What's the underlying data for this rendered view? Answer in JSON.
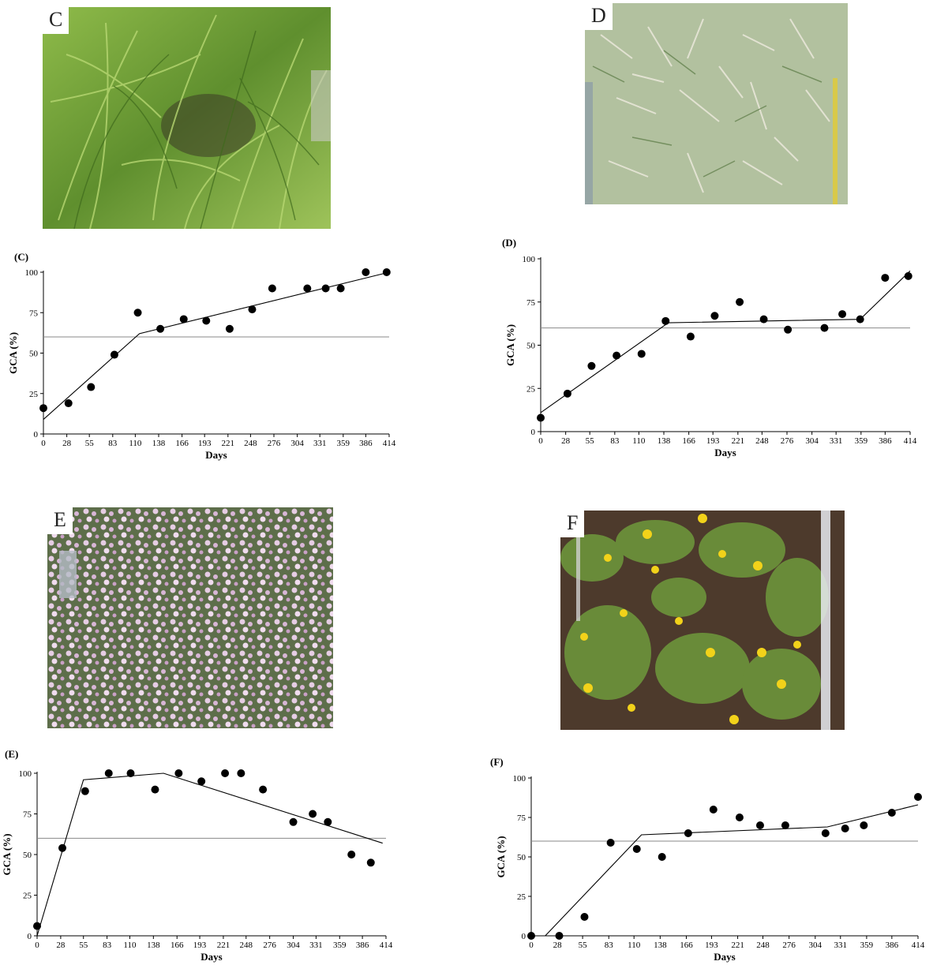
{
  "panels": [
    {
      "letter": "C",
      "photo_label": "C",
      "photo_theme": "green-grass-tussocks"
    },
    {
      "letter": "D",
      "photo_label": "D",
      "photo_theme": "pale-grass-with-measuring-tape"
    },
    {
      "letter": "E",
      "photo_label": "E",
      "photo_theme": "pink-flowering-groundcover"
    },
    {
      "letter": "F",
      "photo_label": "F",
      "photo_theme": "yellow-flowers-on-soil"
    }
  ],
  "colors": {
    "marker": "#000000",
    "trend_line": "#000000",
    "threshold_line": "#888888",
    "grass_green": "#6f9e3a",
    "pale_grass": "#c9d3b8",
    "pink_flower": "#d8b6d6",
    "yellow_flower": "#f2d21a",
    "soil": "#4d3a2c"
  },
  "chart_data": [
    {
      "type": "scatter",
      "title": "(C)",
      "xlabel": "Days",
      "ylabel": "GCA (%)",
      "xlim": [
        0,
        414
      ],
      "ylim": [
        0,
        100
      ],
      "xticks": [
        0,
        28,
        55,
        83,
        110,
        138,
        166,
        193,
        221,
        248,
        276,
        304,
        331,
        359,
        386,
        414
      ],
      "yticks": [
        0,
        25,
        50,
        75,
        100
      ],
      "threshold": 60,
      "points": [
        {
          "x": 0,
          "y": 16
        },
        {
          "x": 30,
          "y": 19
        },
        {
          "x": 57,
          "y": 29
        },
        {
          "x": 85,
          "y": 49
        },
        {
          "x": 113,
          "y": 75
        },
        {
          "x": 140,
          "y": 65
        },
        {
          "x": 168,
          "y": 71
        },
        {
          "x": 195,
          "y": 70
        },
        {
          "x": 223,
          "y": 65
        },
        {
          "x": 250,
          "y": 77
        },
        {
          "x": 274,
          "y": 90
        },
        {
          "x": 316,
          "y": 90
        },
        {
          "x": 338,
          "y": 90
        },
        {
          "x": 356,
          "y": 90
        },
        {
          "x": 386,
          "y": 100
        },
        {
          "x": 411,
          "y": 100
        }
      ],
      "trend": [
        {
          "x": 0,
          "y": 9
        },
        {
          "x": 115,
          "y": 62
        },
        {
          "x": 414,
          "y": 100
        }
      ]
    },
    {
      "type": "scatter",
      "title": "(D)",
      "xlabel": "Days",
      "ylabel": "GCA (%)",
      "xlim": [
        0,
        414
      ],
      "ylim": [
        0,
        100
      ],
      "xticks": [
        0,
        28,
        55,
        83,
        110,
        138,
        166,
        193,
        221,
        248,
        276,
        304,
        331,
        359,
        386,
        414
      ],
      "yticks": [
        0,
        25,
        50,
        75,
        100
      ],
      "threshold": 60,
      "points": [
        {
          "x": 0,
          "y": 8
        },
        {
          "x": 30,
          "y": 22
        },
        {
          "x": 57,
          "y": 38
        },
        {
          "x": 85,
          "y": 44
        },
        {
          "x": 113,
          "y": 45
        },
        {
          "x": 140,
          "y": 64
        },
        {
          "x": 168,
          "y": 55
        },
        {
          "x": 195,
          "y": 67
        },
        {
          "x": 223,
          "y": 75
        },
        {
          "x": 250,
          "y": 65
        },
        {
          "x": 277,
          "y": 59
        },
        {
          "x": 318,
          "y": 60
        },
        {
          "x": 338,
          "y": 68
        },
        {
          "x": 358,
          "y": 65
        },
        {
          "x": 386,
          "y": 89
        },
        {
          "x": 412,
          "y": 90
        }
      ],
      "trend": [
        {
          "x": 0,
          "y": 11
        },
        {
          "x": 143,
          "y": 63
        },
        {
          "x": 358,
          "y": 65
        },
        {
          "x": 414,
          "y": 93
        }
      ]
    },
    {
      "type": "scatter",
      "title": "(E)",
      "xlabel": "Days",
      "ylabel": "GCA (%)",
      "xlim": [
        0,
        414
      ],
      "ylim": [
        0,
        100
      ],
      "xticks": [
        0,
        28,
        55,
        83,
        110,
        138,
        166,
        193,
        221,
        248,
        276,
        304,
        331,
        359,
        386,
        414
      ],
      "yticks": [
        0,
        25,
        50,
        75,
        100
      ],
      "threshold": 60,
      "points": [
        {
          "x": 0,
          "y": 6
        },
        {
          "x": 30,
          "y": 54
        },
        {
          "x": 57,
          "y": 89
        },
        {
          "x": 85,
          "y": 100
        },
        {
          "x": 111,
          "y": 100
        },
        {
          "x": 140,
          "y": 90
        },
        {
          "x": 168,
          "y": 100
        },
        {
          "x": 195,
          "y": 95
        },
        {
          "x": 223,
          "y": 100
        },
        {
          "x": 242,
          "y": 100
        },
        {
          "x": 268,
          "y": 90
        },
        {
          "x": 304,
          "y": 70
        },
        {
          "x": 327,
          "y": 75
        },
        {
          "x": 345,
          "y": 70
        },
        {
          "x": 373,
          "y": 50
        },
        {
          "x": 396,
          "y": 45
        }
      ],
      "trend": [
        {
          "x": 0,
          "y": 0
        },
        {
          "x": 55,
          "y": 96
        },
        {
          "x": 150,
          "y": 100
        },
        {
          "x": 410,
          "y": 57
        }
      ]
    },
    {
      "type": "scatter",
      "title": "(F)",
      "xlabel": "Days",
      "ylabel": "GCA (%)",
      "xlim": [
        0,
        414
      ],
      "ylim": [
        0,
        100
      ],
      "xticks": [
        0,
        28,
        55,
        83,
        110,
        138,
        166,
        193,
        221,
        248,
        276,
        304,
        331,
        359,
        386,
        414
      ],
      "yticks": [
        0,
        25,
        50,
        75,
        100
      ],
      "threshold": 60,
      "points": [
        {
          "x": 0,
          "y": 0
        },
        {
          "x": 30,
          "y": 0
        },
        {
          "x": 57,
          "y": 12
        },
        {
          "x": 85,
          "y": 59
        },
        {
          "x": 113,
          "y": 55
        },
        {
          "x": 140,
          "y": 50
        },
        {
          "x": 168,
          "y": 65
        },
        {
          "x": 195,
          "y": 80
        },
        {
          "x": 223,
          "y": 75
        },
        {
          "x": 245,
          "y": 70
        },
        {
          "x": 272,
          "y": 70
        },
        {
          "x": 315,
          "y": 65
        },
        {
          "x": 336,
          "y": 68
        },
        {
          "x": 356,
          "y": 70
        },
        {
          "x": 386,
          "y": 78
        },
        {
          "x": 414,
          "y": 88
        }
      ],
      "trend": [
        {
          "x": 15,
          "y": 0
        },
        {
          "x": 118,
          "y": 64
        },
        {
          "x": 317,
          "y": 69
        },
        {
          "x": 414,
          "y": 83
        }
      ]
    }
  ]
}
